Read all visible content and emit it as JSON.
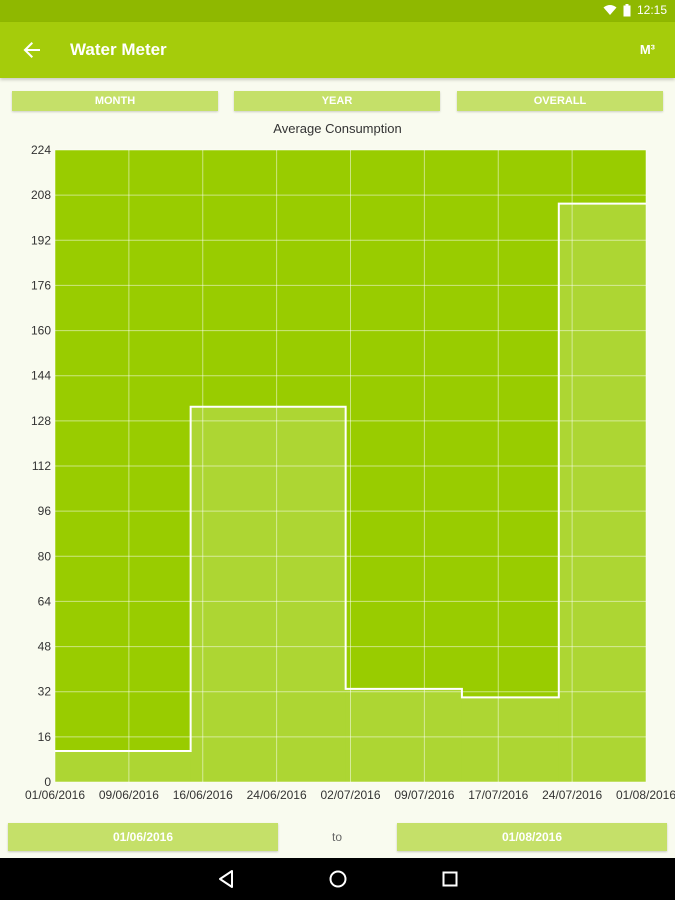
{
  "status": {
    "time": "12:15",
    "icons": [
      "wifi-icon",
      "battery-icon"
    ]
  },
  "appbar": {
    "title": "Water Meter",
    "unit": "M³",
    "back_icon": "arrow-back-icon"
  },
  "tabs": [
    "MONTH",
    "YEAR",
    "OVERALL"
  ],
  "date_range": {
    "from": "01/06/2016",
    "separator": "to",
    "to": "01/08/2016"
  },
  "nav": [
    "back-triangle-icon",
    "home-circle-icon",
    "recents-square-icon"
  ],
  "colors": {
    "primary": "#a5cc0b",
    "status": "#8fb800",
    "plot_bg": "#99cc00",
    "button": "#c5e069"
  },
  "chart_data": {
    "type": "area",
    "title": "Average Consumption",
    "step": true,
    "xlabel": "",
    "ylabel": "",
    "ylim": [
      0,
      224
    ],
    "yticks": [
      0,
      16,
      32,
      48,
      64,
      80,
      96,
      112,
      128,
      144,
      160,
      176,
      192,
      208,
      224
    ],
    "xtick_labels": [
      "01/06/2016",
      "09/06/2016",
      "16/06/2016",
      "24/06/2016",
      "02/07/2016",
      "09/07/2016",
      "17/07/2016",
      "24/07/2016",
      "01/08/2016"
    ],
    "series": [
      {
        "x": [
          "2016-06-01",
          "2016-06-15",
          "2016-07-01",
          "2016-07-13",
          "2016-07-23",
          "2016-08-01"
        ],
        "values": [
          11,
          133,
          33,
          30,
          205,
          205
        ]
      }
    ],
    "grid": true
  }
}
